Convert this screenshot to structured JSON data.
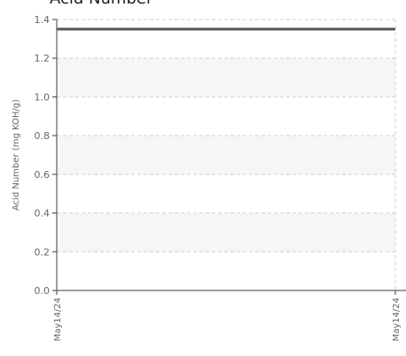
{
  "chart_data": {
    "type": "line",
    "title": "Acid Number",
    "xlabel": "",
    "ylabel": "Acid Number (mg KOH/g)",
    "ylim": [
      0,
      1.4
    ],
    "yticks": [
      "0.0",
      "0.2",
      "0.4",
      "0.6",
      "0.8",
      "1.0",
      "1.2",
      "1.4"
    ],
    "x_tick_labels": [
      "May14/24",
      "May14/24"
    ],
    "series": [
      {
        "values": [
          1.35,
          1.35
        ],
        "color": "#555555"
      }
    ],
    "grid": true,
    "colors": {
      "line": "#555555",
      "band": "#f6f6f6",
      "grid": "#d0d0d0",
      "axis": "#3c3c3c",
      "tick_text": "#666666"
    }
  }
}
